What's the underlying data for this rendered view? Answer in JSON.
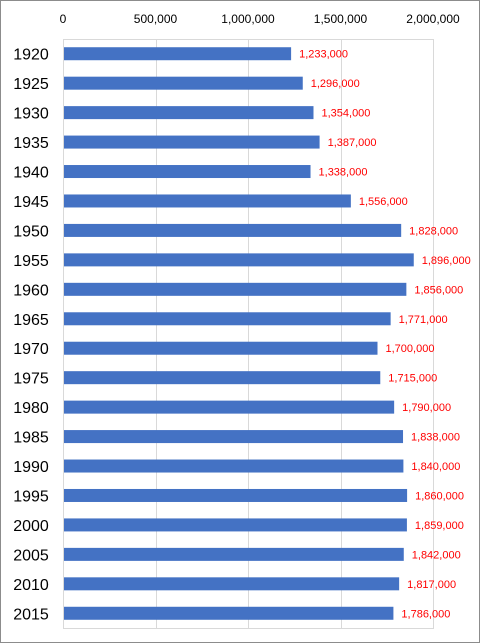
{
  "chart_data": {
    "type": "bar",
    "orientation": "horizontal",
    "title": "",
    "xlabel": "",
    "ylabel": "",
    "categories": [
      "1920",
      "1925",
      "1930",
      "1935",
      "1940",
      "1945",
      "1950",
      "1955",
      "1960",
      "1965",
      "1970",
      "1975",
      "1980",
      "1985",
      "1990",
      "1995",
      "2000",
      "2005",
      "2010",
      "2015"
    ],
    "values": [
      1233000,
      1296000,
      1354000,
      1387000,
      1338000,
      1556000,
      1828000,
      1896000,
      1856000,
      1771000,
      1700000,
      1715000,
      1790000,
      1838000,
      1840000,
      1860000,
      1859000,
      1842000,
      1817000,
      1786000
    ],
    "data_labels": [
      "1,233,000",
      "1,296,000",
      "1,354,000",
      "1,387,000",
      "1,338,000",
      "1,556,000",
      "1,828,000",
      "1,896,000",
      "1,856,000",
      "1,771,000",
      "1,700,000",
      "1,715,000",
      "1,790,000",
      "1,838,000",
      "1,840,000",
      "1,860,000",
      "1,859,000",
      "1,842,000",
      "1,817,000",
      "1,786,000"
    ],
    "xlim": [
      0,
      2000000
    ],
    "x_ticks": [
      0,
      500000,
      1000000,
      1500000,
      2000000
    ],
    "x_tick_labels": [
      "0",
      "500,000",
      "1,000,000",
      "1,500,000",
      "2,000,000"
    ],
    "x_axis_position": "top",
    "grid": true,
    "legend": "none",
    "bar_color": "#4472C4",
    "data_label_color": "#FF0000",
    "grid_color": "#D9D9D9"
  }
}
